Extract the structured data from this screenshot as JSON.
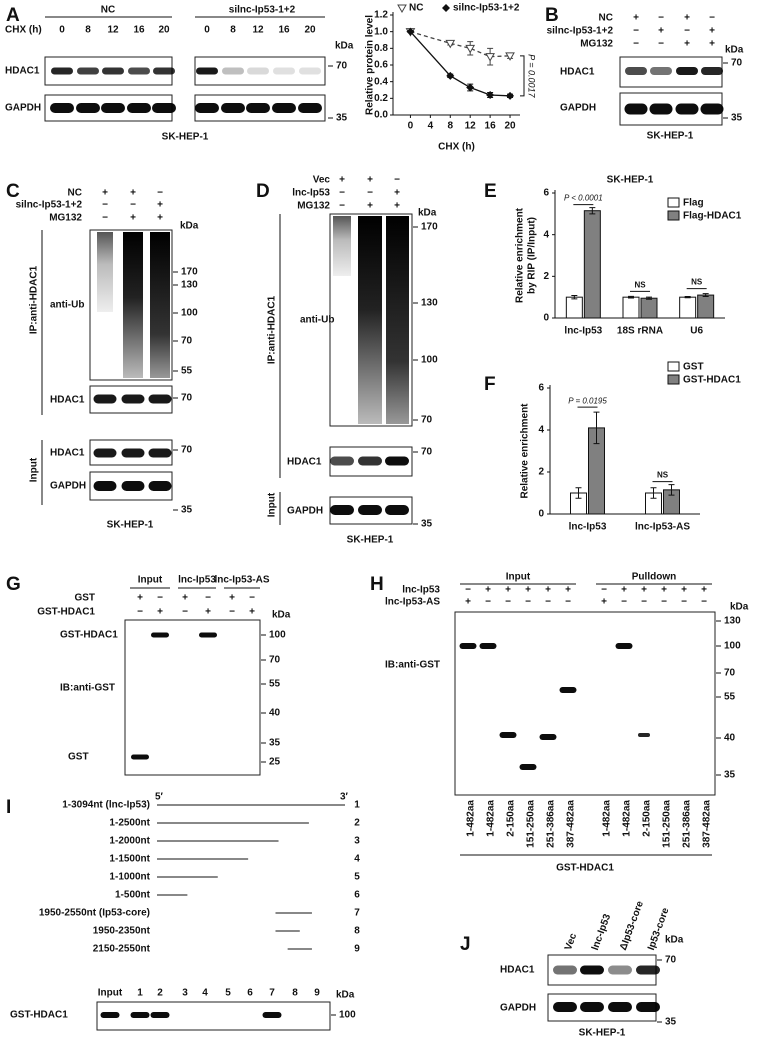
{
  "panels": {
    "A": {
      "label": "A",
      "blot": {
        "groups": [
          "NC",
          "silnc-Ip53-1+2"
        ],
        "chx": "CHX (h)",
        "times": [
          "0",
          "8",
          "12",
          "16",
          "20",
          "0",
          "8",
          "12",
          "16",
          "20"
        ],
        "kda": "kDa",
        "rows": [
          "HDAC1",
          "GAPDH"
        ],
        "markers": [
          "70",
          "35"
        ],
        "cell": "SK-HEP-1"
      },
      "chart": {
        "type": "line",
        "ylabel": "Relative protein level",
        "xlabel": "CHX (h)",
        "x": [
          0,
          8,
          12,
          16,
          20
        ],
        "series": [
          {
            "name": "NC",
            "color": "#444444",
            "line_style": "dashed",
            "marker": "triangle-down",
            "values": [
              1.0,
              0.86,
              0.8,
              0.7,
              0.71
            ],
            "errors": [
              0,
              0.02,
              0.08,
              0.1,
              0.03
            ]
          },
          {
            "name": "silnc-Ip53-1+2",
            "color": "#111111",
            "line_style": "solid",
            "marker": "diamond",
            "values": [
              1.0,
              0.47,
              0.33,
              0.24,
              0.23
            ],
            "errors": [
              0,
              0.02,
              0.04,
              0.03,
              0.02
            ]
          }
        ],
        "xlim": [
          -3.5,
          22
        ],
        "ylim": [
          0,
          1.2
        ],
        "xticks": [
          0,
          4,
          8,
          12,
          16,
          20
        ],
        "yticks": [
          {
            "value": 0,
            "label": "0.0"
          },
          {
            "value": 0.2,
            "label": "0.2"
          },
          {
            "value": 0.4,
            "label": "0.4"
          },
          {
            "value": 0.6,
            "label": "0.6"
          },
          {
            "value": 0.8,
            "label": "0.8"
          },
          {
            "value": 1,
            "label": "1.0"
          },
          {
            "value": 1.2,
            "label": "1.2"
          }
        ],
        "annotation": "P = 0.0017"
      }
    },
    "B": {
      "label": "B",
      "signs": {
        "names": [
          "NC",
          "silnc-Ip53-1+2",
          "MG132"
        ],
        "rows": [
          [
            "+",
            "−",
            "+",
            "−"
          ],
          [
            "−",
            "+",
            "−",
            "+"
          ],
          [
            "−",
            "−",
            "+",
            "+"
          ]
        ]
      },
      "kda": "kDa",
      "rows": [
        "HDAC1",
        "GAPDH"
      ],
      "markers": [
        "70",
        "35"
      ],
      "cell": "SK-HEP-1"
    },
    "C": {
      "label": "C",
      "signs": {
        "names": [
          "NC",
          "silnc-Ip53-1+2",
          "MG132"
        ],
        "rows": [
          [
            "+",
            "+",
            "−"
          ],
          [
            "−",
            "−",
            "+"
          ],
          [
            "−",
            "+",
            "+"
          ]
        ]
      },
      "ip": "IP:anti-HDAC1",
      "input": "Input",
      "kda": "kDa",
      "blots": [
        "anti-Ub",
        "HDAC1",
        "HDAC1",
        "GAPDH"
      ],
      "markers": [
        "170",
        "130",
        "100",
        "70",
        "55",
        "70",
        "70",
        "35"
      ],
      "cell": "SK-HEP-1"
    },
    "D": {
      "label": "D",
      "signs": {
        "names": [
          "Vec",
          "lnc-Ip53",
          "MG132"
        ],
        "rows": [
          [
            "+",
            "+",
            "−"
          ],
          [
            "−",
            "−",
            "+"
          ],
          [
            "−",
            "+",
            "+"
          ]
        ]
      },
      "ip": "IP:anti-HDAC1",
      "input": "Input",
      "kda": "kDa",
      "blots": [
        "anti-Ub",
        "HDAC1",
        "GAPDH"
      ],
      "markers": [
        "170",
        "130",
        "100",
        "70",
        "70",
        "35"
      ],
      "cell": "SK-HEP-1"
    },
    "E": {
      "label": "E",
      "chart": {
        "type": "bar",
        "title": "SK-HEP-1",
        "ylabel": [
          "Relative enrichment",
          "by RIP (IP/Input)"
        ],
        "categories": [
          "lnc-Ip53",
          "18S rRNA",
          "U6"
        ],
        "series": [
          {
            "name": "Flag",
            "color": "#ffffff",
            "values": [
              1.0,
              1.0,
              1.0
            ],
            "errors": [
              0.08,
              0.04,
              0.03
            ]
          },
          {
            "name": "Flag-HDAC1",
            "color": "#808080",
            "values": [
              5.15,
              0.95,
              1.1
            ],
            "errors": [
              0.15,
              0.05,
              0.07
            ]
          }
        ],
        "ylim": [
          0,
          6
        ],
        "yticks": [
          0,
          2,
          4,
          6
        ],
        "annotations": [
          "P < 0.0001",
          "NS",
          "NS"
        ]
      }
    },
    "F": {
      "label": "F",
      "chart": {
        "type": "bar",
        "ylabel": [
          "Relative enrichment"
        ],
        "categories": [
          "lnc-Ip53",
          "lnc-Ip53-AS"
        ],
        "series": [
          {
            "name": "GST",
            "color": "#ffffff",
            "values": [
              1.0,
              1.0
            ],
            "errors": [
              0.25,
              0.25
            ]
          },
          {
            "name": "GST-HDAC1",
            "color": "#808080",
            "values": [
              4.1,
              1.15
            ],
            "errors": [
              0.75,
              0.25
            ]
          }
        ],
        "ylim": [
          0,
          6
        ],
        "yticks": [
          0,
          2,
          4,
          6
        ],
        "annotations": [
          "P = 0.0195",
          "NS"
        ]
      }
    },
    "G": {
      "label": "G",
      "headers": [
        "Input",
        "lnc-Ip53",
        "lnc-Ip53-AS"
      ],
      "signs": {
        "names": [
          "GST",
          "GST-HDAC1"
        ],
        "rows": [
          [
            "+",
            "−",
            "+",
            "−",
            "+",
            "−"
          ],
          [
            "−",
            "+",
            "−",
            "+",
            "−",
            "+"
          ]
        ]
      },
      "kda": "kDa",
      "blots": [
        "GST-HDAC1",
        "IB:anti-GST",
        "GST"
      ],
      "markers": [
        "100",
        "70",
        "55",
        "40",
        "35",
        "25"
      ]
    },
    "H": {
      "label": "H",
      "headers": [
        "Input",
        "Pulldown"
      ],
      "signs": {
        "names": [
          "lnc-Ip53",
          "lnc-Ip53-AS"
        ],
        "rows": [
          [
            "−",
            "+",
            "+",
            "+",
            "+",
            "+",
            "−",
            "+",
            "+",
            "+",
            "+",
            "+"
          ],
          [
            "+",
            "−",
            "−",
            "−",
            "−",
            "−",
            "+",
            "−",
            "−",
            "−",
            "−",
            "−"
          ]
        ]
      },
      "kda": "kDa",
      "blot": "IB:anti-GST",
      "markers": [
        "130",
        "100",
        "70",
        "55",
        "40",
        "35"
      ],
      "lanes": [
        "1-482aa",
        "1-482aa",
        "2-150aa",
        "151-250aa",
        "251-386aa",
        "387-482aa",
        "1-482aa",
        "1-482aa",
        "2-150aa",
        "151-250aa",
        "251-386aa",
        "387-482aa"
      ],
      "group": "GST-HDAC1"
    },
    "I": {
      "label": "I",
      "ends": [
        "5′",
        "3′"
      ],
      "constructs": [
        "1-3094nt (lnc-Ip53)",
        "1-2500nt",
        "1-2000nt",
        "1-1500nt",
        "1-1000nt",
        "1-500nt",
        "1950-2550nt (Ip53-core)",
        "1950-2350nt",
        "2150-2550nt"
      ],
      "numbers": [
        "1",
        "2",
        "3",
        "4",
        "5",
        "6",
        "7",
        "8",
        "9"
      ],
      "lanes": [
        "Input",
        "1",
        "2",
        "3",
        "4",
        "5",
        "6",
        "7",
        "8",
        "9"
      ],
      "kda": "kDa",
      "row": "GST-HDAC1",
      "marker": "100"
    },
    "J": {
      "label": "J",
      "lanes": [
        "Vec",
        "lnc-Ip53",
        "ΔIp53-core",
        "Ip53-core"
      ],
      "kda": "kDa",
      "rows": [
        "HDAC1",
        "GAPDH"
      ],
      "markers": [
        "70",
        "35"
      ],
      "cell": "SK-HEP-1"
    }
  }
}
